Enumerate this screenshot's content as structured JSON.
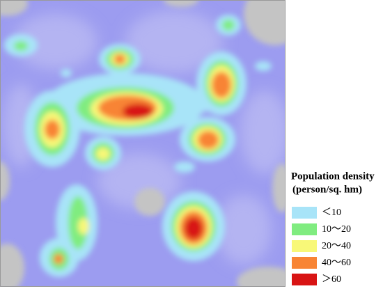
{
  "legend": {
    "title": "Population density",
    "subtitle": "(person/sq. hm)",
    "items": [
      {
        "label": "＜10",
        "color": "#a8e4f8"
      },
      {
        "label": "10～20",
        "color": "#80ec80"
      },
      {
        "label": "20～40",
        "color": "#f8f878"
      },
      {
        "label": "40～60",
        "color": "#f88434"
      },
      {
        "label": "＞60",
        "color": "#d81414"
      }
    ]
  }
}
